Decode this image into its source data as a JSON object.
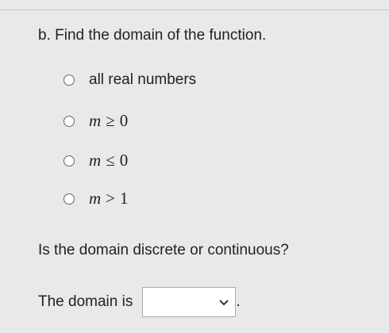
{
  "question": {
    "label": "b. Find the domain of the function.",
    "options": [
      {
        "var": "",
        "rel": "",
        "num": "all real numbers"
      },
      {
        "var": "m",
        "rel": "≥",
        "num": "0"
      },
      {
        "var": "m",
        "rel": "≤",
        "num": "0"
      },
      {
        "var": "m",
        "rel": ">",
        "num": "1"
      }
    ],
    "second_question": "Is the domain discrete or continuous?",
    "answer_prefix": "The domain is",
    "answer_suffix": "."
  }
}
